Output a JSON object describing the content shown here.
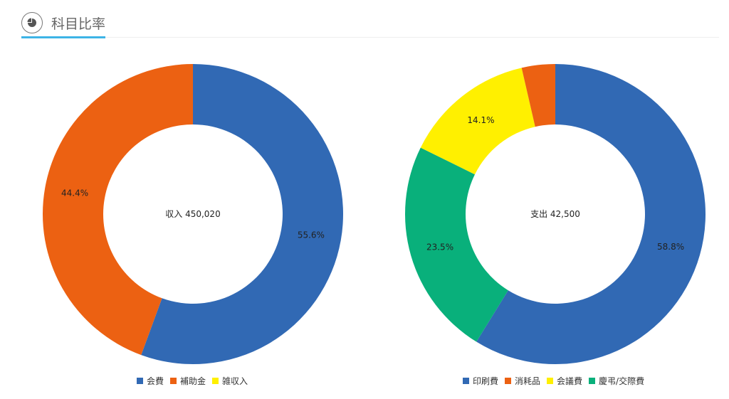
{
  "header": {
    "title": "科目比率",
    "icon": "pie-chart-icon"
  },
  "chart_data": [
    {
      "type": "pie",
      "donut": true,
      "center_label": "収入 450,020",
      "series": [
        {
          "name": "会費",
          "value": 55.6,
          "label": "55.6%",
          "color": "#3169b4"
        },
        {
          "name": "補助金",
          "value": 44.4,
          "label": "44.4%",
          "color": "#ec6112"
        },
        {
          "name": "雑収入",
          "value": 0,
          "label": "",
          "color": "#fff000"
        }
      ],
      "legend": [
        "会費",
        "補助金",
        "雑収入"
      ],
      "legend_position": "bottom"
    },
    {
      "type": "pie",
      "donut": true,
      "center_label": "支出 42,500",
      "series": [
        {
          "name": "印刷費",
          "value": 58.8,
          "label": "58.8%",
          "color": "#3169b4"
        },
        {
          "name": "慶弔/交際費",
          "value": 23.5,
          "label": "23.5%",
          "color": "#09b07b"
        },
        {
          "name": "会議費",
          "value": 14.1,
          "label": "14.1%",
          "color": "#fff000"
        },
        {
          "name": "消耗品",
          "value": 3.6,
          "label": "",
          "color": "#ec6112"
        }
      ],
      "legend": [
        "印刷費",
        "消耗品",
        "会議費",
        "慶弔/交際費"
      ],
      "legend_position": "bottom"
    }
  ]
}
